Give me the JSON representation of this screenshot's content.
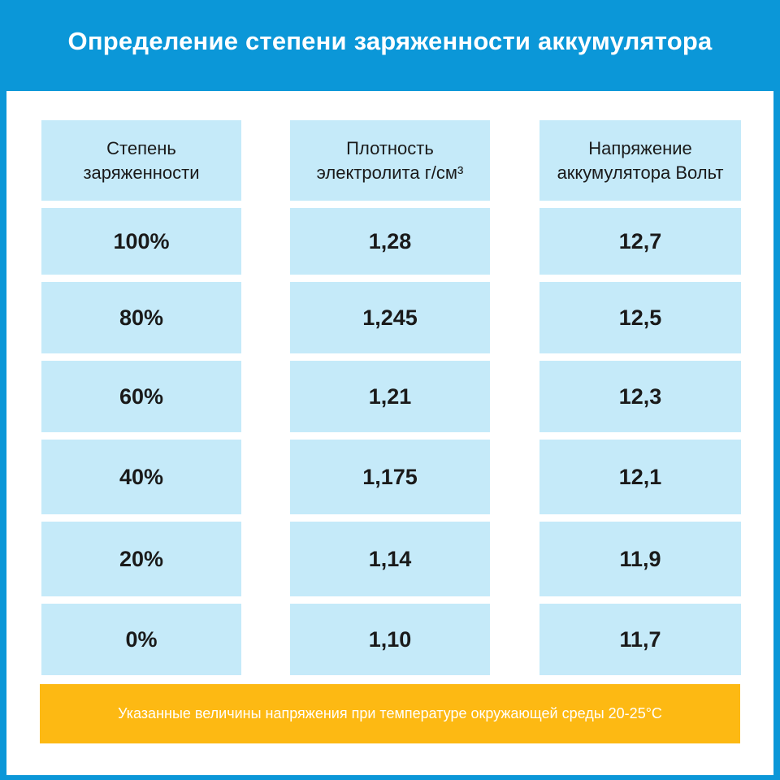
{
  "title": "Определение степени заряженности аккумулятора",
  "columns": [
    "Степень заряженности",
    "Плотность электролита г/см³",
    "Напряжение аккумулятора Вольт"
  ],
  "rows": [
    [
      "100%",
      "1,28",
      "12,7"
    ],
    [
      "80%",
      "1,245",
      "12,5"
    ],
    [
      "60%",
      "1,21",
      "12,3"
    ],
    [
      "40%",
      "1,175",
      "12,1"
    ],
    [
      "20%",
      "1,14",
      "11,9"
    ],
    [
      "0%",
      "1,10",
      "11,7"
    ]
  ],
  "note": "Указанные величины напряжения при температуре окружающей среды 20-25°С",
  "colors": {
    "frame": "#0b97d8",
    "cell": "#c5eaf9",
    "note_bg": "#fdb913"
  }
}
